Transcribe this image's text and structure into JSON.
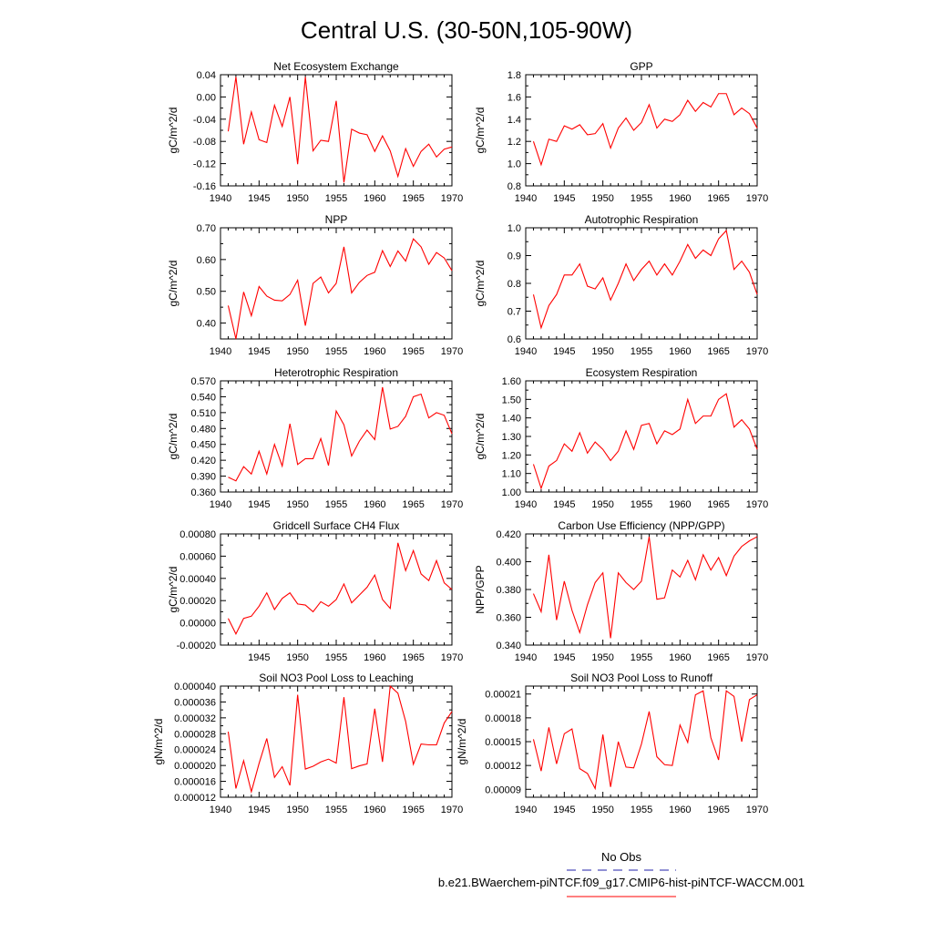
{
  "figure": {
    "title": "Central U.S. (30-50N,105-90W)",
    "legend": [
      {
        "label": "No Obs",
        "color": "#2222aa",
        "dash": "dashed"
      },
      {
        "label": "b.e21.BWaerchem-piNTCF.f09_g17.CMIP6-hist-piNTCF-WACCM.001",
        "color": "#ff0000",
        "dash": "solid"
      }
    ]
  },
  "chart_data": [
    {
      "type": "line",
      "title": "Net Ecosystem Exchange",
      "ylabel": "gC/m^2/d",
      "xlim": [
        1940,
        1970
      ],
      "ylim": [
        -0.16,
        0.04
      ],
      "xticks": [
        "1940",
        "1945",
        "1950",
        "1955",
        "1960",
        "1965",
        "1970"
      ],
      "yticks": [
        "0.04",
        "0.00",
        "-0.04",
        "-0.08",
        "-0.12",
        "-0.16"
      ],
      "ytick_values": [
        0.04,
        0.0,
        -0.04,
        -0.08,
        -0.12,
        -0.16
      ],
      "series": [
        {
          "color": "#ff0000",
          "x": [
            1941,
            1942,
            1943,
            1944,
            1945,
            1946,
            1947,
            1948,
            1949,
            1950,
            1951,
            1952,
            1953,
            1954,
            1955,
            1956,
            1957,
            1958,
            1959,
            1960,
            1961,
            1962,
            1963,
            1964,
            1965,
            1966,
            1967,
            1968,
            1969,
            1970
          ],
          "y": [
            -0.062,
            0.036,
            -0.085,
            -0.027,
            -0.077,
            -0.082,
            -0.015,
            -0.053,
            0.0,
            -0.121,
            0.036,
            -0.097,
            -0.078,
            -0.08,
            -0.007,
            -0.154,
            -0.058,
            -0.065,
            -0.068,
            -0.098,
            -0.07,
            -0.097,
            -0.143,
            -0.093,
            -0.125,
            -0.098,
            -0.085,
            -0.108,
            -0.094,
            -0.09
          ]
        }
      ]
    },
    {
      "type": "line",
      "title": "GPP",
      "ylabel": "gC/m^2/d",
      "xlim": [
        1940,
        1970
      ],
      "ylim": [
        0.8,
        1.8
      ],
      "xticks": [
        "1940",
        "1945",
        "1950",
        "1955",
        "1960",
        "1965",
        "1970"
      ],
      "yticks": [
        "1.8",
        "1.6",
        "1.4",
        "1.2",
        "1.0",
        "0.8"
      ],
      "ytick_values": [
        1.8,
        1.6,
        1.4,
        1.2,
        1.0,
        0.8
      ],
      "series": [
        {
          "color": "#ff0000",
          "x": [
            1941,
            1942,
            1943,
            1944,
            1945,
            1946,
            1947,
            1948,
            1949,
            1950,
            1951,
            1952,
            1953,
            1954,
            1955,
            1956,
            1957,
            1958,
            1959,
            1960,
            1961,
            1962,
            1963,
            1964,
            1965,
            1966,
            1967,
            1968,
            1969,
            1970
          ],
          "y": [
            1.2,
            0.99,
            1.22,
            1.2,
            1.34,
            1.31,
            1.35,
            1.26,
            1.27,
            1.36,
            1.14,
            1.32,
            1.41,
            1.3,
            1.37,
            1.53,
            1.32,
            1.4,
            1.38,
            1.44,
            1.57,
            1.47,
            1.55,
            1.51,
            1.63,
            1.63,
            1.44,
            1.5,
            1.45,
            1.32
          ]
        }
      ]
    },
    {
      "type": "line",
      "title": "NPP",
      "ylabel": "gC/m^2/d",
      "xlim": [
        1940,
        1970
      ],
      "ylim": [
        0.35,
        0.7
      ],
      "xticks": [
        "1940",
        "1945",
        "1950",
        "1955",
        "1960",
        "1965",
        "1970"
      ],
      "yticks": [
        "0.70",
        "0.60",
        "0.50",
        "0.40"
      ],
      "ytick_values": [
        0.7,
        0.6,
        0.5,
        0.4
      ],
      "series": [
        {
          "color": "#ff0000",
          "x": [
            1941,
            1942,
            1943,
            1944,
            1945,
            1946,
            1947,
            1948,
            1949,
            1950,
            1951,
            1952,
            1953,
            1954,
            1955,
            1956,
            1957,
            1958,
            1959,
            1960,
            1961,
            1962,
            1963,
            1964,
            1965,
            1966,
            1967,
            1968,
            1969,
            1970
          ],
          "y": [
            0.455,
            0.35,
            0.498,
            0.423,
            0.515,
            0.485,
            0.472,
            0.47,
            0.49,
            0.535,
            0.392,
            0.525,
            0.545,
            0.495,
            0.525,
            0.64,
            0.495,
            0.528,
            0.55,
            0.56,
            0.628,
            0.578,
            0.627,
            0.595,
            0.665,
            0.64,
            0.585,
            0.622,
            0.605,
            0.565
          ]
        }
      ]
    },
    {
      "type": "line",
      "title": "Autotrophic Respiration",
      "ylabel": "gC/m^2/d",
      "xlim": [
        1940,
        1970
      ],
      "ylim": [
        0.6,
        1.0
      ],
      "xticks": [
        "1940",
        "1945",
        "1950",
        "1955",
        "1960",
        "1965",
        "1970"
      ],
      "yticks": [
        "1.0",
        "0.9",
        "0.8",
        "0.7",
        "0.6"
      ],
      "ytick_values": [
        1.0,
        0.9,
        0.8,
        0.7,
        0.6
      ],
      "series": [
        {
          "color": "#ff0000",
          "x": [
            1941,
            1942,
            1943,
            1944,
            1945,
            1946,
            1947,
            1948,
            1949,
            1950,
            1951,
            1952,
            1953,
            1954,
            1955,
            1956,
            1957,
            1958,
            1959,
            1960,
            1961,
            1962,
            1963,
            1964,
            1965,
            1966,
            1967,
            1968,
            1969,
            1970
          ],
          "y": [
            0.76,
            0.64,
            0.72,
            0.76,
            0.83,
            0.83,
            0.87,
            0.79,
            0.78,
            0.82,
            0.74,
            0.8,
            0.87,
            0.81,
            0.85,
            0.88,
            0.83,
            0.87,
            0.83,
            0.88,
            0.94,
            0.89,
            0.92,
            0.9,
            0.96,
            0.99,
            0.85,
            0.88,
            0.84,
            0.76
          ]
        }
      ]
    },
    {
      "type": "line",
      "title": "Heterotrophic Respiration",
      "ylabel": "gC/m^2/d",
      "xlim": [
        1940,
        1970
      ],
      "ylim": [
        0.36,
        0.57
      ],
      "xticks": [
        "1940",
        "1945",
        "1950",
        "1955",
        "1960",
        "1965",
        "1970"
      ],
      "yticks": [
        "0.570",
        "0.540",
        "0.510",
        "0.480",
        "0.450",
        "0.420",
        "0.390",
        "0.360"
      ],
      "ytick_values": [
        0.57,
        0.54,
        0.51,
        0.48,
        0.45,
        0.42,
        0.39,
        0.36
      ],
      "series": [
        {
          "color": "#ff0000",
          "x": [
            1941,
            1942,
            1943,
            1944,
            1945,
            1946,
            1947,
            1948,
            1949,
            1950,
            1951,
            1952,
            1953,
            1954,
            1955,
            1956,
            1957,
            1958,
            1959,
            1960,
            1961,
            1962,
            1963,
            1964,
            1965,
            1966,
            1967,
            1968,
            1969,
            1970
          ],
          "y": [
            0.388,
            0.381,
            0.408,
            0.394,
            0.437,
            0.394,
            0.45,
            0.409,
            0.489,
            0.412,
            0.423,
            0.423,
            0.461,
            0.41,
            0.513,
            0.487,
            0.428,
            0.456,
            0.477,
            0.459,
            0.558,
            0.479,
            0.484,
            0.503,
            0.54,
            0.545,
            0.5,
            0.51,
            0.505,
            0.47
          ]
        }
      ]
    },
    {
      "type": "line",
      "title": "Ecosystem Respiration",
      "ylabel": "gC/m^2/d",
      "xlim": [
        1940,
        1970
      ],
      "ylim": [
        1.0,
        1.6
      ],
      "xticks": [
        "1940",
        "1945",
        "1950",
        "1955",
        "1960",
        "1965",
        "1970"
      ],
      "yticks": [
        "1.60",
        "1.50",
        "1.40",
        "1.30",
        "1.20",
        "1.10",
        "1.00"
      ],
      "ytick_values": [
        1.6,
        1.5,
        1.4,
        1.3,
        1.2,
        1.1,
        1.0
      ],
      "series": [
        {
          "color": "#ff0000",
          "x": [
            1941,
            1942,
            1943,
            1944,
            1945,
            1946,
            1947,
            1948,
            1949,
            1950,
            1951,
            1952,
            1953,
            1954,
            1955,
            1956,
            1957,
            1958,
            1959,
            1960,
            1961,
            1962,
            1963,
            1964,
            1965,
            1966,
            1967,
            1968,
            1969,
            1970
          ],
          "y": [
            1.15,
            1.02,
            1.14,
            1.17,
            1.26,
            1.22,
            1.32,
            1.21,
            1.27,
            1.23,
            1.17,
            1.22,
            1.33,
            1.23,
            1.36,
            1.37,
            1.26,
            1.33,
            1.31,
            1.34,
            1.5,
            1.37,
            1.41,
            1.41,
            1.5,
            1.53,
            1.35,
            1.39,
            1.34,
            1.23
          ]
        }
      ]
    },
    {
      "type": "line",
      "title": "Gridcell Surface CH4 Flux",
      "ylabel": "gC/m^2/d",
      "xlim": [
        1940,
        1970
      ],
      "ylim": [
        -0.0002,
        0.0008
      ],
      "xticks": [
        "",
        "1945",
        "1950",
        "1955",
        "1960",
        "1965",
        "1970"
      ],
      "yticks": [
        "0.00080",
        "0.00060",
        "0.00040",
        "0.00020",
        "0.00000",
        "-0.00020"
      ],
      "ytick_values": [
        0.0008,
        0.0006,
        0.0004,
        0.0002,
        0.0,
        -0.0002
      ],
      "series": [
        {
          "color": "#ff0000",
          "x": [
            1941,
            1942,
            1943,
            1944,
            1945,
            1946,
            1947,
            1948,
            1949,
            1950,
            1951,
            1952,
            1953,
            1954,
            1955,
            1956,
            1957,
            1958,
            1959,
            1960,
            1961,
            1962,
            1963,
            1964,
            1965,
            1966,
            1967,
            1968,
            1969,
            1970
          ],
          "y": [
            4e-05,
            -0.0001,
            4e-05,
            6e-05,
            0.00015,
            0.00027,
            0.00012,
            0.00022,
            0.00027,
            0.00017,
            0.00016,
            0.0001,
            0.00019,
            0.00015,
            0.00021,
            0.00035,
            0.00018,
            0.00025,
            0.00032,
            0.00043,
            0.00021,
            0.00013,
            0.00072,
            0.00047,
            0.00065,
            0.00044,
            0.00038,
            0.00056,
            0.00036,
            0.0003
          ]
        }
      ]
    },
    {
      "type": "line",
      "title": "Carbon Use Efficiency (NPP/GPP)",
      "ylabel": "NPP/GPP",
      "xlim": [
        1940,
        1970
      ],
      "ylim": [
        0.34,
        0.42
      ],
      "xticks": [
        "1940",
        "1945",
        "1950",
        "1955",
        "1960",
        "1965",
        "1970"
      ],
      "yticks": [
        "0.420",
        "0.400",
        "0.380",
        "0.360",
        "0.340"
      ],
      "ytick_values": [
        0.42,
        0.4,
        0.38,
        0.36,
        0.34
      ],
      "series": [
        {
          "color": "#ff0000",
          "x": [
            1941,
            1942,
            1943,
            1944,
            1945,
            1946,
            1947,
            1948,
            1949,
            1950,
            1951,
            1952,
            1953,
            1954,
            1955,
            1956,
            1957,
            1958,
            1959,
            1960,
            1961,
            1962,
            1963,
            1964,
            1965,
            1966,
            1967,
            1968,
            1969,
            1970
          ],
          "y": [
            0.377,
            0.364,
            0.405,
            0.358,
            0.386,
            0.365,
            0.349,
            0.369,
            0.385,
            0.392,
            0.345,
            0.392,
            0.385,
            0.38,
            0.386,
            0.418,
            0.373,
            0.374,
            0.394,
            0.389,
            0.401,
            0.387,
            0.405,
            0.394,
            0.403,
            0.39,
            0.404,
            0.411,
            0.415,
            0.418
          ]
        }
      ]
    },
    {
      "type": "line",
      "title": "Soil NO3 Pool Loss to Leaching",
      "ylabel": "gN/m^2/d",
      "xlim": [
        1940,
        1970
      ],
      "ylim": [
        1.2e-05,
        4e-05
      ],
      "xticks": [
        "1940",
        "1945",
        "1950",
        "1955",
        "1960",
        "1965",
        "1970"
      ],
      "yticks": [
        "0.000040",
        "0.000036",
        "0.000032",
        "0.000028",
        "0.000024",
        "0.000020",
        "0.000016",
        "0.000012"
      ],
      "ytick_values": [
        4e-05,
        3.6e-05,
        3.2e-05,
        2.8e-05,
        2.4e-05,
        2e-05,
        1.6e-05,
        1.2e-05
      ],
      "series": [
        {
          "color": "#ff0000",
          "x": [
            1941,
            1942,
            1943,
            1944,
            1945,
            1946,
            1947,
            1948,
            1949,
            1950,
            1951,
            1952,
            1953,
            1954,
            1955,
            1956,
            1957,
            1958,
            1959,
            1960,
            1961,
            1962,
            1963,
            1964,
            1965,
            1966,
            1967,
            1968,
            1969,
            1970
          ],
          "y": [
            2.85e-05,
            1.42e-05,
            2.12e-05,
            1.34e-05,
            2.05e-05,
            2.68e-05,
            1.7e-05,
            1.97e-05,
            1.5e-05,
            3.78e-05,
            1.91e-05,
            1.98e-05,
            2.09e-05,
            2.16e-05,
            2.06e-05,
            3.72e-05,
            1.92e-05,
            1.99e-05,
            2.04e-05,
            3.43e-05,
            2.09e-05,
            4e-05,
            3.82e-05,
            3.11e-05,
            2.03e-05,
            2.54e-05,
            2.52e-05,
            2.52e-05,
            3.07e-05,
            3.36e-05
          ]
        }
      ]
    },
    {
      "type": "line",
      "title": "Soil NO3 Pool Loss to Runoff",
      "ylabel": "gN/m^2/d",
      "xlim": [
        1940,
        1970
      ],
      "ylim": [
        8e-05,
        0.00022
      ],
      "xticks": [
        "1940",
        "1945",
        "1950",
        "1955",
        "1960",
        "1965",
        "1970"
      ],
      "yticks": [
        "0.00021",
        "0.00018",
        "0.00015",
        "0.00012",
        "0.00009"
      ],
      "ytick_values": [
        0.00021,
        0.00018,
        0.00015,
        0.00012,
        9e-05
      ],
      "series": [
        {
          "color": "#ff0000",
          "x": [
            1941,
            1942,
            1943,
            1944,
            1945,
            1946,
            1947,
            1948,
            1949,
            1950,
            1951,
            1952,
            1953,
            1954,
            1955,
            1956,
            1957,
            1958,
            1959,
            1960,
            1961,
            1962,
            1963,
            1964,
            1965,
            1966,
            1967,
            1968,
            1969,
            1970
          ],
          "y": [
            0.000153,
            0.000113,
            0.000168,
            0.000122,
            0.00016,
            0.000166,
            0.000116,
            0.00011,
            9.1e-05,
            0.000159,
            9.3e-05,
            0.00015,
            0.000118,
            0.000117,
            0.000147,
            0.000188,
            0.000131,
            0.000121,
            0.00012,
            0.000171,
            0.000149,
            0.000209,
            0.000214,
            0.000155,
            0.000127,
            0.000214,
            0.000207,
            0.00015,
            0.000203,
            0.000209
          ]
        }
      ]
    }
  ]
}
